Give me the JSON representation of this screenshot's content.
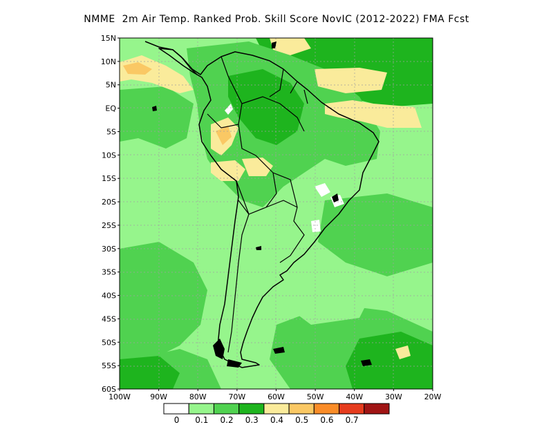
{
  "title": "NMME  2m Air Temp. Ranked Prob. Skill Score NovIC (2012-2022) FMA Fcst",
  "map": {
    "lat_labels": [
      "15N",
      "10N",
      "5N",
      "EQ",
      "5S",
      "10S",
      "15S",
      "20S",
      "25S",
      "30S",
      "35S",
      "40S",
      "45S",
      "50S",
      "55S",
      "60S"
    ],
    "lon_labels": [
      "100W",
      "90W",
      "80W",
      "70W",
      "60W",
      "50W",
      "40W",
      "30W",
      "20W"
    ],
    "extent": {
      "lon_min": -100,
      "lon_max": -20,
      "lat_min": -60,
      "lat_max": 15
    },
    "gridlines": true
  },
  "colorbar": {
    "labels": [
      "0",
      "0.1",
      "0.2",
      "0.3",
      "0.4",
      "0.5",
      "0.6",
      "0.7"
    ],
    "colors": [
      "#ffffff",
      "#96f58c",
      "#50d250",
      "#1eb41e",
      "#faeb9b",
      "#fac864",
      "#fa8c28",
      "#e63c1e",
      "#a01414"
    ]
  }
}
